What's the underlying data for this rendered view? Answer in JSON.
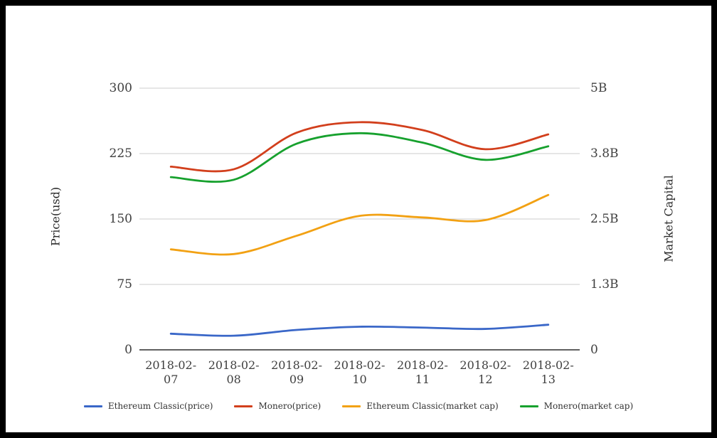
{
  "chart_data": {
    "type": "line",
    "title": "",
    "x_categories": [
      "2018-02-07",
      "2018-02-08",
      "2018-02-09",
      "2018-02-10",
      "2018-02-11",
      "2018-02-12",
      "2018-02-13"
    ],
    "left_axis": {
      "label": "Price(usd)",
      "tick_labels": [
        "0",
        "75",
        "150",
        "225",
        "300"
      ],
      "range": [
        0,
        300
      ]
    },
    "right_axis": {
      "label": "Market Capital",
      "tick_labels": [
        "0",
        "1.3B",
        "2.5B",
        "3.8B",
        "5B"
      ],
      "range_billions": [
        0,
        5
      ]
    },
    "series": [
      {
        "name": "Ethereum Classic(price)",
        "axis": "left",
        "color": "#3a67c8",
        "unit": "usd",
        "values": [
          18.5,
          16.2,
          22.8,
          26.5,
          25.5,
          24.0,
          28.8
        ]
      },
      {
        "name": "Monero(price)",
        "axis": "left",
        "color": "#d23f1c",
        "unit": "usd",
        "values": [
          210,
          207,
          249,
          261,
          252,
          230,
          247
        ]
      },
      {
        "name": "Ethereum Classic(market cap)",
        "axis": "right",
        "color": "#f2a113",
        "unit": "billions_usd",
        "values": [
          1.92,
          1.83,
          2.18,
          2.56,
          2.53,
          2.48,
          2.96
        ]
      },
      {
        "name": "Monero(market cap)",
        "axis": "right",
        "color": "#17a12e",
        "unit": "billions_usd",
        "values": [
          3.3,
          3.25,
          3.94,
          4.14,
          3.96,
          3.63,
          3.89
        ]
      }
    ],
    "legend_position": "bottom",
    "grid": true,
    "colors": {
      "grid_line": "#cccccc",
      "zero_axis_line": "#2b2b2b",
      "tick_text": "#3f3f3f",
      "background": "#ffffff",
      "frame_border": "#000000"
    }
  }
}
